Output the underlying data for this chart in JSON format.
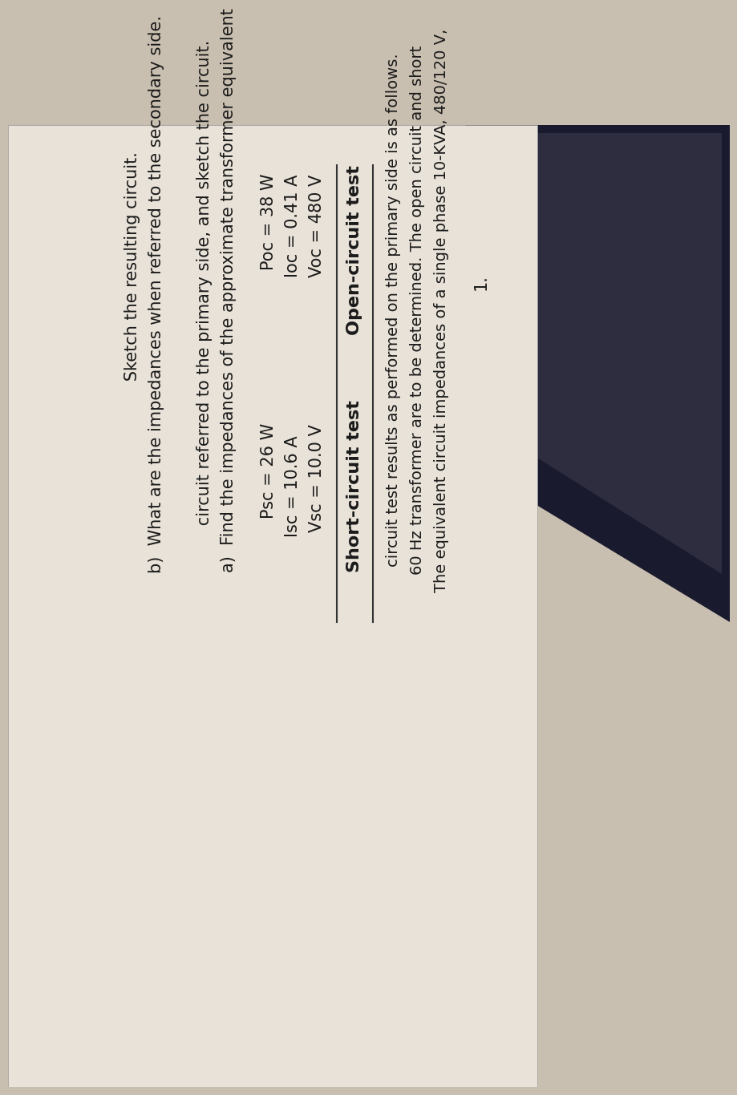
{
  "background_color": "#c8bfb0",
  "laptop_dark": "#1a1a2e",
  "laptop_mid": "#2d2d3f",
  "paper_color": "#e8e2d8",
  "paper_shadow": "#ccc5b8",
  "text_color": "#1a1a1a",
  "line_color": "#333333",
  "problem_number": "1.",
  "intro_line1": "The equivalent circuit impedances of a single phase 10-KVA, 480/120 V,",
  "intro_line2": "60 Hz transformer are to be determined. The open circuit and short",
  "intro_line3": "circuit test results as performed on the primary side is as follows.",
  "oc_header": "Open-circuit test",
  "sc_header": "Short-circuit test",
  "oc_v": "Voc = 480 V",
  "oc_i": "Ioc = 0.41 A",
  "oc_p": "Poc = 38 W",
  "sc_v": "Vsc = 10.0 V",
  "sc_i": "Isc = 10.6 A",
  "sc_p": "Psc = 26 W",
  "part_a1": "a)  Find the impedances of the approximate transformer equivalent",
  "part_a2": "      circuit referred to the primary side, and sketch the circuit.",
  "part_b1": "b)  What are the impedances when referred to the secondary side.",
  "part_b2": "      Sketch the resulting circuit.",
  "rotation": 90,
  "main_fs": 15,
  "header_fs": 16,
  "num_fs": 15
}
